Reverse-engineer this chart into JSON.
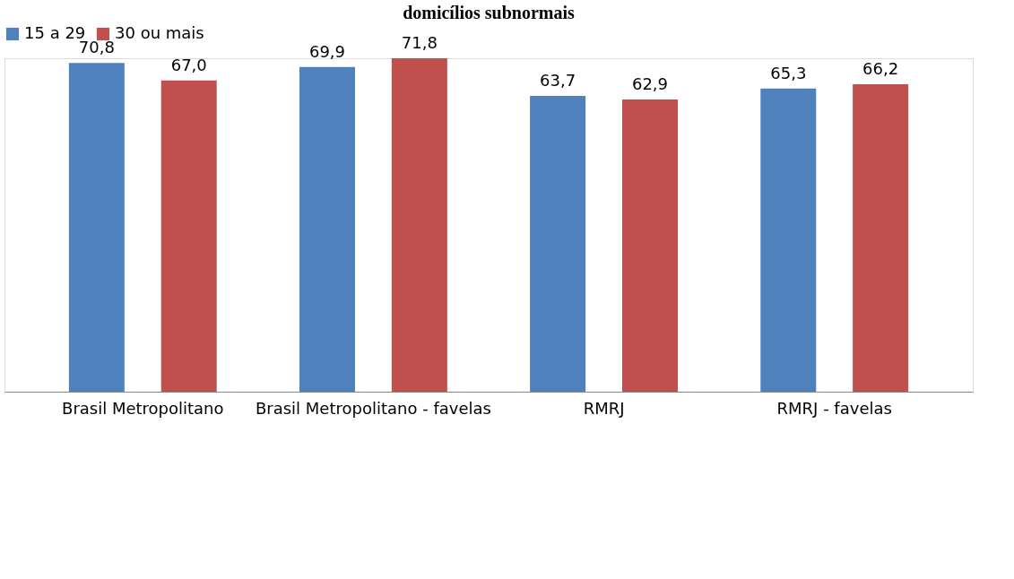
{
  "chart_data": {
    "type": "bar",
    "title": "domicílios subnormais",
    "categories": [
      "Brasil Metropolitano",
      "Brasil Metropolitano - favelas",
      "RMRJ",
      "RMRJ - favelas"
    ],
    "series": [
      {
        "name": "15 a 29",
        "color": "#4f81bd",
        "values": [
          70.8,
          69.9,
          63.7,
          65.3
        ],
        "value_labels": [
          "70,8",
          "69,9",
          "63,7",
          "65,3"
        ]
      },
      {
        "name": "30 ou mais",
        "color": "#c0504d",
        "values": [
          67.0,
          71.8,
          62.9,
          66.2
        ],
        "value_labels": [
          "67,0",
          "71,8",
          "62,9",
          "66,2"
        ]
      }
    ],
    "legend": "top",
    "tick_labels": "x",
    "grid": false
  }
}
